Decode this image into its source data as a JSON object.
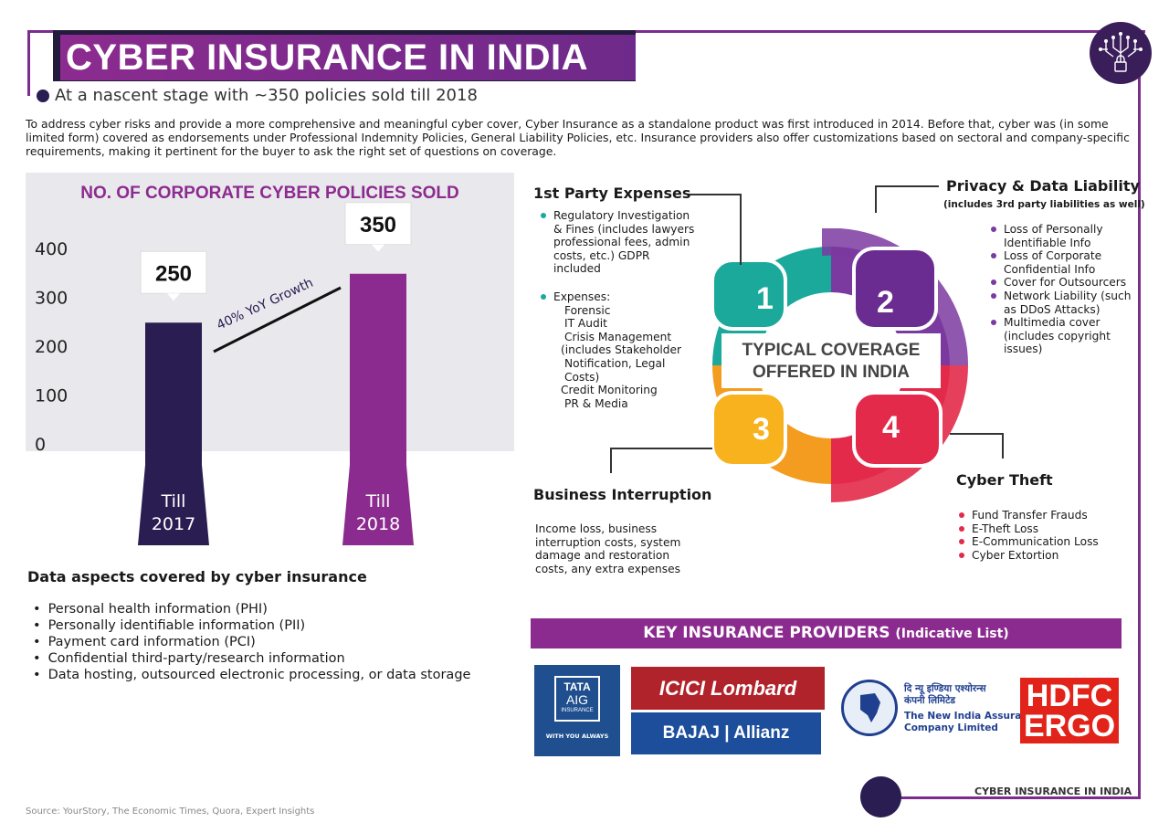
{
  "title": "CYBER INSURANCE IN INDIA",
  "subtitle": "At a nascent stage with ~350 policies sold till 2018",
  "intro": "To address cyber risks and provide a more comprehensive and meaningful cyber cover, Cyber Insurance as a standalone product was first introduced in 2014. Before that, cyber was (in some limited form) covered as endorsements under Professional Indemnity Policies, General Liability Policies, etc. Insurance providers also offer customizations based on sectoral and company-specific requirements, making it pertinent for the buyer to ask the right set of questions on coverage.",
  "chart_data": {
    "type": "bar",
    "title": "NO. OF CORPORATE CYBER POLICIES SOLD",
    "categories": [
      "Till 2017",
      "Till 2018"
    ],
    "category_lines": [
      [
        "Till",
        "2017"
      ],
      [
        "Till",
        "2018"
      ]
    ],
    "values": [
      250,
      350
    ],
    "data_labels": [
      "250",
      "350"
    ],
    "y_ticks": [
      "0",
      "100",
      "200",
      "300",
      "400"
    ],
    "ylim": [
      0,
      400
    ],
    "annotation": "40% YoY Growth",
    "colors": [
      "#2a1d52",
      "#8c2b8f"
    ]
  },
  "data_aspects": {
    "heading": "Data aspects covered by cyber insurance",
    "items": [
      "Personal health information (PHI)",
      "Personally identifiable information (PII)",
      "Payment card information (PCI)",
      "Confidential third-party/research information",
      "Data hosting, outsourced electronic processing, or data storage"
    ]
  },
  "coverage": {
    "center_line1": "TYPICAL COVERAGE",
    "center_line2": "OFFERED IN INDIA",
    "numbers": [
      "1",
      "2",
      "3",
      "4"
    ],
    "first_party": {
      "heading": "1st Party Expenses",
      "bullet1": [
        "Regulatory Investigation",
        "& Fines (includes lawyers",
        "professional fees, admin",
        "costs, etc.) GDPR",
        "included"
      ],
      "bullet2_head": "Expenses:",
      "bullet2_items": [
        "Forensic",
        "IT Audit",
        "Crisis Management",
        "(includes Stakeholder",
        "Notification, Legal",
        "Costs)",
        "Credit Monitoring",
        "PR & Media"
      ]
    },
    "privacy": {
      "heading": "Privacy & Data Liability",
      "note": "(includes 3rd party liabilities as well)",
      "items": [
        [
          "Loss of Personally",
          "Identifiable Info"
        ],
        [
          "Loss of Corporate",
          "Confidential Info"
        ],
        [
          "Cover for Outsourcers"
        ],
        [
          "Network Liability (such",
          "as DDoS Attacks)"
        ],
        [
          "Multimedia cover",
          "(includes copyright",
          "issues)"
        ]
      ]
    },
    "business": {
      "heading": "Business Interruption",
      "text": [
        "Income loss, business",
        "interruption costs, system",
        "damage and restoration",
        "costs, any extra expenses"
      ]
    },
    "theft": {
      "heading": "Cyber Theft",
      "items": [
        "Fund Transfer Frauds",
        "E-Theft Loss",
        "E-Communication Loss",
        "Cyber Extortion"
      ]
    },
    "colors": {
      "teal": "#1aa99a",
      "purple": "#7b3aa0",
      "orange": "#f39c1f",
      "red": "#e32a4a"
    }
  },
  "providers": {
    "heading": "KEY INSURANCE PROVIDERS",
    "heading_note": "(Indicative List)",
    "tata": {
      "line1": "TATA",
      "line2": "AIG",
      "line3": "INSURANCE",
      "tagline": "WITH YOU ALWAYS"
    },
    "icici": "ICICI Lombard",
    "bajaj": "BAJAJ | Allianz",
    "newindia": {
      "hindi1": "दि न्यू इण्डिया एश्योरन्स",
      "hindi2": "कंपनी लिमिटेड",
      "en1": "The New India Assurance",
      "en2": "Company Limited"
    },
    "hdfc": {
      "line1": "HDFC",
      "line2": "ERGO"
    }
  },
  "footer": "CYBER INSURANCE IN INDIA",
  "source": "Source: YourStory, The Economic Times, Quora, Expert Insights"
}
